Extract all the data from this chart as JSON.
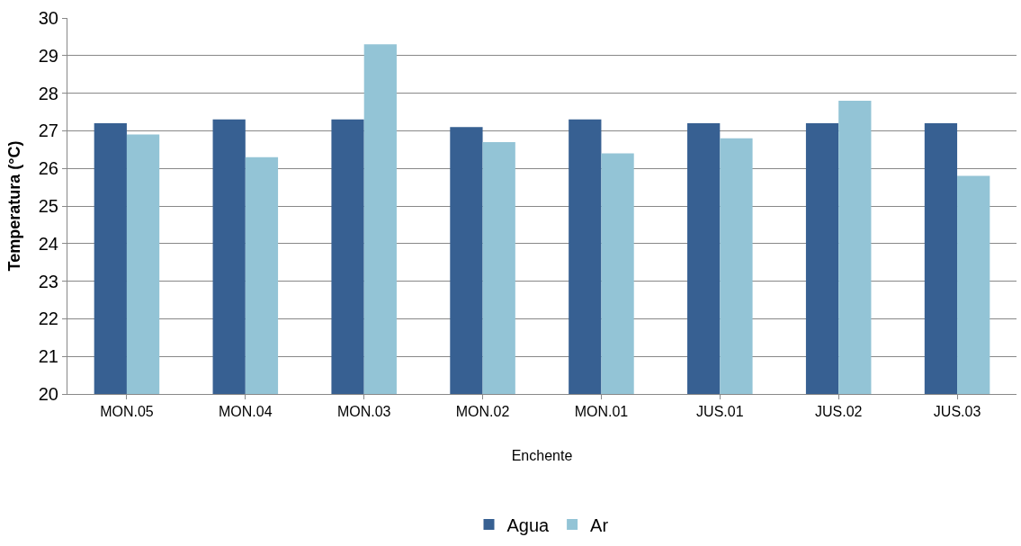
{
  "chart_data": {
    "type": "bar",
    "xlabel": "Enchente",
    "ylabel": "Temperatura (°C)",
    "categories": [
      "MON.05",
      "MON.04",
      "MON.03",
      "MON.02",
      "MON.01",
      "JUS.01",
      "JUS.02",
      "JUS.03"
    ],
    "series": [
      {
        "name": "Agua",
        "color": "#376092",
        "values": [
          27.2,
          27.3,
          27.3,
          27.1,
          27.3,
          27.2,
          27.2,
          27.2
        ]
      },
      {
        "name": "Ar",
        "color": "#93c4d6",
        "values": [
          26.9,
          26.3,
          29.3,
          26.7,
          26.4,
          26.8,
          27.8,
          25.8
        ]
      }
    ],
    "ylim": [
      20,
      30
    ],
    "yticks": [
      20,
      21,
      22,
      23,
      24,
      25,
      26,
      27,
      28,
      29,
      30
    ],
    "grid": "y",
    "legend": "bottom"
  }
}
